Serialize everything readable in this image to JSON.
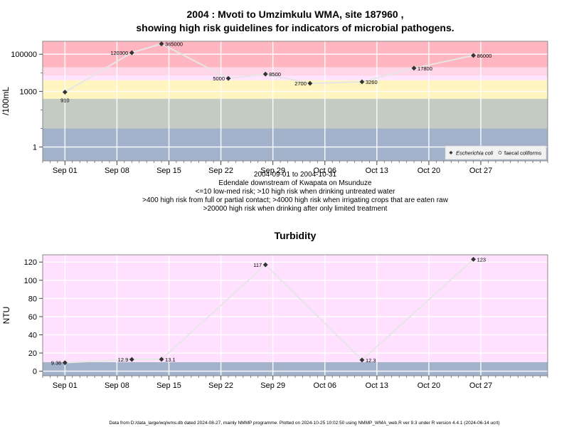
{
  "colors": {
    "very_high": "#ffb6c1",
    "limited_treatment": "#ffd6e7",
    "irrigation": "#ffe4ff",
    "partial_contact": "#fff5c0",
    "untreated": "#c3cbc2",
    "low": "#a2b2cb",
    "turb_bg": "#ffe1ff",
    "turb_low": "#a2b2cb",
    "line": "#e6e6e6",
    "marker": "#333333",
    "frame": "#8a8a8a"
  },
  "footer": "Data from D:/data_large/wq/wms.db dated 2024-08-27, mainly NMMP programme. Plotted on 2024-10-25 10:02:50 using NMMP_WMA_web.R ver 9.3 under R version 4.4.1 (2024-06-14 ucrt)",
  "chart_data": [
    {
      "type": "scatter",
      "title": "2004 : Mvoti to Umzimkulu WMA, site 187960 ,",
      "title2": "showing high risk guidelines for indicators of microbial pathogens.",
      "ylabel": "/100mL",
      "y_scale": "log",
      "ylim": [
        0.18,
        500000
      ],
      "xlim": [
        "2004-08-29",
        "2004-11-05"
      ],
      "x_ticks": [
        {
          "date": "2004-09-01",
          "label": "Sep 01"
        },
        {
          "date": "2004-09-08",
          "label": "Sep 08"
        },
        {
          "date": "2004-09-15",
          "label": "Sep 15"
        },
        {
          "date": "2004-09-22",
          "label": "Sep 22"
        },
        {
          "date": "2004-09-29",
          "label": "Sep 29"
        },
        {
          "date": "2004-10-06",
          "label": "Oct 06"
        },
        {
          "date": "2004-10-13",
          "label": "Oct 13"
        },
        {
          "date": "2004-10-20",
          "label": "Oct 20"
        },
        {
          "date": "2004-10-27",
          "label": "Oct 27"
        }
      ],
      "y_ticks": [
        {
          "value": 1,
          "label": "1"
        },
        {
          "value": 1000,
          "label": "1000"
        },
        {
          "value": 100000,
          "label": "100000"
        }
      ],
      "risk_bands": [
        {
          "from": 0.18,
          "to": 10,
          "color_key": "low"
        },
        {
          "from": 10,
          "to": 400,
          "color_key": "untreated"
        },
        {
          "from": 400,
          "to": 4000,
          "color_key": "partial_contact"
        },
        {
          "from": 4000,
          "to": 7000,
          "color_key": "irrigation"
        },
        {
          "from": 7000,
          "to": 20000,
          "color_key": "limited_treatment"
        },
        {
          "from": 20000,
          "to": 500000,
          "color_key": "very_high"
        }
      ],
      "series": [
        {
          "name": "Escherichia coli",
          "marker": "diamond",
          "points": [
            {
              "x": "2004-09-01",
              "y": 910,
              "label": "910",
              "pos": "below"
            },
            {
              "x": "2004-09-10",
              "y": 120300,
              "label": "120300",
              "pos": "left"
            },
            {
              "x": "2004-09-14",
              "y": 365000,
              "label": "365000",
              "pos": "right"
            },
            {
              "x": "2004-09-23",
              "y": 5000,
              "label": "5000",
              "pos": "left"
            },
            {
              "x": "2004-09-28",
              "y": 8500,
              "label": "8500",
              "pos": "right"
            },
            {
              "x": "2004-10-04",
              "y": 2700,
              "label": "2700",
              "pos": "left"
            },
            {
              "x": "2004-10-11",
              "y": 3260,
              "label": "3260",
              "pos": "right"
            },
            {
              "x": "2004-10-18",
              "y": 17800,
              "label": "17800",
              "pos": "right"
            },
            {
              "x": "2004-10-26",
              "y": 86000,
              "label": "86000",
              "pos": "right"
            }
          ]
        },
        {
          "name": "faecal coliforms",
          "marker": "open-circle",
          "points": []
        }
      ],
      "legend_position": "bottom-right",
      "xlabel_lines": [
        "2004-09-01 to 2004-10-31",
        "Edendale downstream of Kwapata on Msunduze",
        "<=10 low-med risk; >10 high risk when drinking untreated water",
        ">400 high risk from full or partial contact; >4000 high risk when irrigating crops that are eaten raw",
        ">20000 high risk when drinking after only limited treatment"
      ]
    },
    {
      "type": "scatter",
      "title": "Turbidity",
      "ylabel": "NTU",
      "ylim": [
        -5,
        128
      ],
      "xlim": [
        "2004-08-29",
        "2004-11-05"
      ],
      "x_ticks": [
        {
          "date": "2004-09-01",
          "label": "Sep 01"
        },
        {
          "date": "2004-09-08",
          "label": "Sep 08"
        },
        {
          "date": "2004-09-15",
          "label": "Sep 15"
        },
        {
          "date": "2004-09-22",
          "label": "Sep 22"
        },
        {
          "date": "2004-09-29",
          "label": "Sep 29"
        },
        {
          "date": "2004-10-06",
          "label": "Oct 06"
        },
        {
          "date": "2004-10-13",
          "label": "Oct 13"
        },
        {
          "date": "2004-10-20",
          "label": "Oct 20"
        },
        {
          "date": "2004-10-27",
          "label": "Oct 27"
        }
      ],
      "y_ticks": [
        {
          "value": 0,
          "label": "0"
        },
        {
          "value": 20,
          "label": "20"
        },
        {
          "value": 40,
          "label": "40"
        },
        {
          "value": 60,
          "label": "60"
        },
        {
          "value": 80,
          "label": "80"
        },
        {
          "value": 100,
          "label": "100"
        },
        {
          "value": 120,
          "label": "120"
        }
      ],
      "risk_bands": [
        {
          "from": -5,
          "to": 10,
          "color_key": "turb_low"
        },
        {
          "from": 10,
          "to": 128,
          "color_key": "turb_bg"
        }
      ],
      "series": [
        {
          "name": "",
          "marker": "diamond",
          "points": [
            {
              "x": "2004-09-01",
              "y": 9.36,
              "label": "9.36",
              "pos": "left"
            },
            {
              "x": "2004-09-10",
              "y": 12.9,
              "label": "12.9",
              "pos": "left"
            },
            {
              "x": "2004-09-14",
              "y": 13.1,
              "label": "13.1",
              "pos": "right"
            },
            {
              "x": "2004-09-28",
              "y": 117,
              "label": "117",
              "pos": "left"
            },
            {
              "x": "2004-10-11",
              "y": 12.3,
              "label": "12.3",
              "pos": "right"
            },
            {
              "x": "2004-10-26",
              "y": 123,
              "label": "123",
              "pos": "right"
            }
          ]
        }
      ]
    }
  ]
}
